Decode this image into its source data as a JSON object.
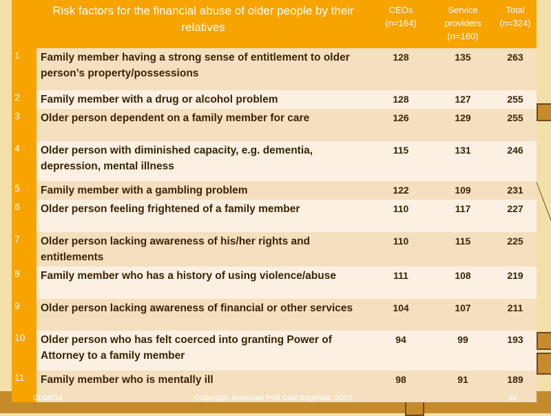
{
  "table": {
    "header": {
      "num": "",
      "factor": "Risk factors for the financial abuse of older people by their relatives",
      "ceos_title": "CEOs",
      "ceos_n": "(n=164)",
      "sp_title_1": "Service",
      "sp_title_2": "providers",
      "sp_n": "(n=160)",
      "total_title": "Total",
      "total_n": "(n=324)"
    },
    "rows": [
      {
        "num": "1",
        "factor": "Family member having a strong sense of entitlement to older person’s property/possessions",
        "ceos": "128",
        "sp": "135",
        "total": "263"
      },
      {
        "num": "2",
        "factor": "Family member with a drug or alcohol problem",
        "ceos": "128",
        "sp": "127",
        "total": "255"
      },
      {
        "num": "3",
        "factor": "Older person dependent on a family member for care",
        "ceos": "126",
        "sp": "129",
        "total": "255"
      },
      {
        "num": "4",
        "factor": "Older person with diminished capacity, e.g. dementia, depression, mental illness",
        "ceos": "115",
        "sp": "131",
        "total": "246"
      },
      {
        "num": "5",
        "factor": "Family member with a gambling problem",
        "ceos": "122",
        "sp": "109",
        "total": "231"
      },
      {
        "num": "6",
        "factor": "Older person feeling frightened of a family member",
        "ceos": "110",
        "sp": "117",
        "total": "227"
      },
      {
        "num": "7",
        "factor": "Older person lacking awareness of his/her rights and entitlements",
        "ceos": "110",
        "sp": "115",
        "total": "225"
      },
      {
        "num": "8",
        "factor": "Family member who has a history of using violence/abuse",
        "ceos": "111",
        "sp": "108",
        "total": "219"
      },
      {
        "num": "9",
        "factor": "Older person lacking awareness of financial or other services",
        "ceos": "104",
        "sp": "107",
        "total": "211"
      },
      {
        "num": "10",
        "factor": "Older person who has felt coerced into granting Power of Attorney to a family member",
        "ceos": "94",
        "sp": "99",
        "total": "193"
      },
      {
        "num": "11",
        "factor": "Family member who is mentally ill",
        "ceos": "98",
        "sp": "91",
        "total": "189"
      }
    ]
  },
  "footer": {
    "date": "01/08/18",
    "copyright": "Copyright:  Associate Prof Dale Bagshaw, 2013.",
    "page": "39"
  },
  "colors": {
    "header_orange": "#f7a300",
    "row_shade": "#f4dfbf",
    "row_light": "#fbf0e2",
    "slide_background": "#f3dfa8",
    "text_brown": "#3a2506"
  }
}
